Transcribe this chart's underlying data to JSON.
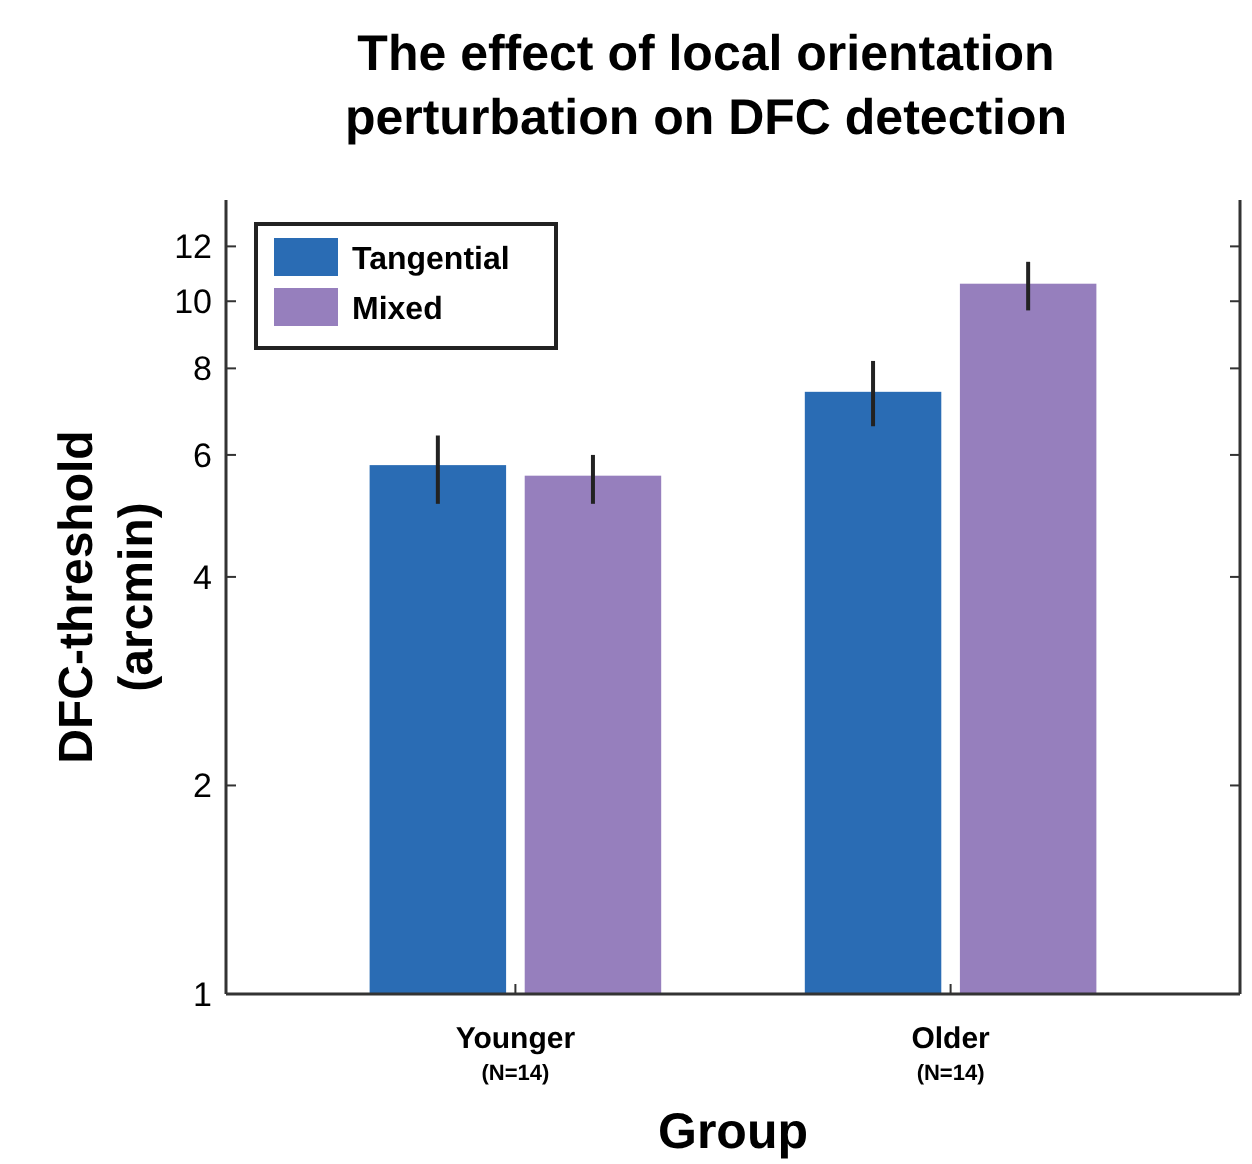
{
  "chart_data": {
    "type": "bar",
    "title": "The effect of local orientation perturbation on DFC detection",
    "xlabel": "Group",
    "ylabel": "DFC-threshold (arcmin)",
    "categories": [
      "Younger\n(N=14)",
      "Older\n(N=14)"
    ],
    "series": [
      {
        "name": "Tangential",
        "color": "#2a6cb4",
        "values": [
          5.8,
          7.4
        ],
        "errors": [
          [
            5.1,
            6.4
          ],
          [
            6.6,
            8.2
          ]
        ]
      },
      {
        "name": "Mixed",
        "color": "#967fbd",
        "values": [
          5.6,
          10.6
        ],
        "errors": [
          [
            5.1,
            6.0
          ],
          [
            9.7,
            11.4
          ]
        ]
      }
    ],
    "log": true,
    "ylim": [
      1,
      14
    ],
    "yticks": [
      1,
      2,
      4,
      6,
      8,
      10,
      12
    ],
    "legend": "top left",
    "grid": false
  }
}
